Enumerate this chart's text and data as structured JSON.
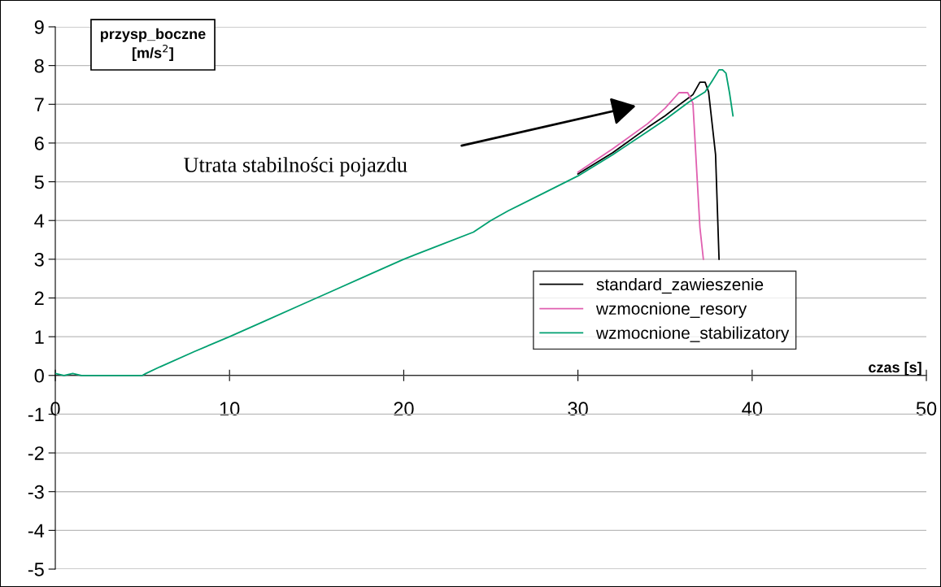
{
  "chart_data": {
    "type": "line",
    "xlabel": "czas [s]",
    "ylabel": "przysp_boczne\n[m/s$^{2}$]",
    "annotations": [
      "Utrata stabilności pojazdu"
    ],
    "xlim": [
      0,
      50
    ],
    "xticks": [
      0,
      10,
      20,
      30,
      40,
      50
    ],
    "ylim": [
      -5,
      9
    ],
    "yticks": [
      -5,
      -4,
      -3,
      -2,
      -1,
      0,
      1,
      2,
      3,
      4,
      5,
      6,
      7,
      8,
      9
    ],
    "grid": "y",
    "legend": "right",
    "marker": "none",
    "line_style": "solid",
    "series": [
      {
        "name": "standard_zawieszenie",
        "color": "#000000",
        "x": [
          30,
          32,
          34,
          35,
          36,
          36.6,
          37.0,
          37.3,
          37.5,
          37.9,
          38.1
        ],
        "values": [
          5.2,
          5.75,
          6.4,
          6.7,
          7.05,
          7.25,
          7.57,
          7.57,
          7.32,
          5.7,
          3.0
        ]
      },
      {
        "name": "wzmocnione_resory",
        "color": "#e060b0",
        "x": [
          30,
          32,
          34,
          35,
          35.8,
          36.3,
          36.6,
          37.0,
          37.2
        ],
        "values": [
          5.25,
          5.85,
          6.5,
          6.9,
          7.3,
          7.3,
          7.03,
          3.83,
          3.0
        ]
      },
      {
        "name": "wzmocnione_stabilizatory",
        "color": "#00a070",
        "x": [
          0,
          0.5,
          1,
          1.5,
          2,
          5,
          5.2,
          6,
          8,
          10,
          12,
          14,
          16,
          18,
          20,
          22,
          24,
          25,
          26,
          28,
          30,
          32,
          34,
          35,
          36.4,
          37.3,
          37.7,
          38.1,
          38.3,
          38.5,
          38.7,
          38.9
        ],
        "values": [
          0.05,
          0.0,
          0.05,
          0,
          0,
          0,
          0.05,
          0.22,
          0.62,
          1.0,
          1.4,
          1.8,
          2.2,
          2.6,
          3.0,
          3.35,
          3.7,
          4.0,
          4.25,
          4.7,
          5.15,
          5.7,
          6.3,
          6.6,
          7.07,
          7.32,
          7.6,
          7.89,
          7.89,
          7.8,
          7.3,
          6.7
        ]
      }
    ]
  }
}
